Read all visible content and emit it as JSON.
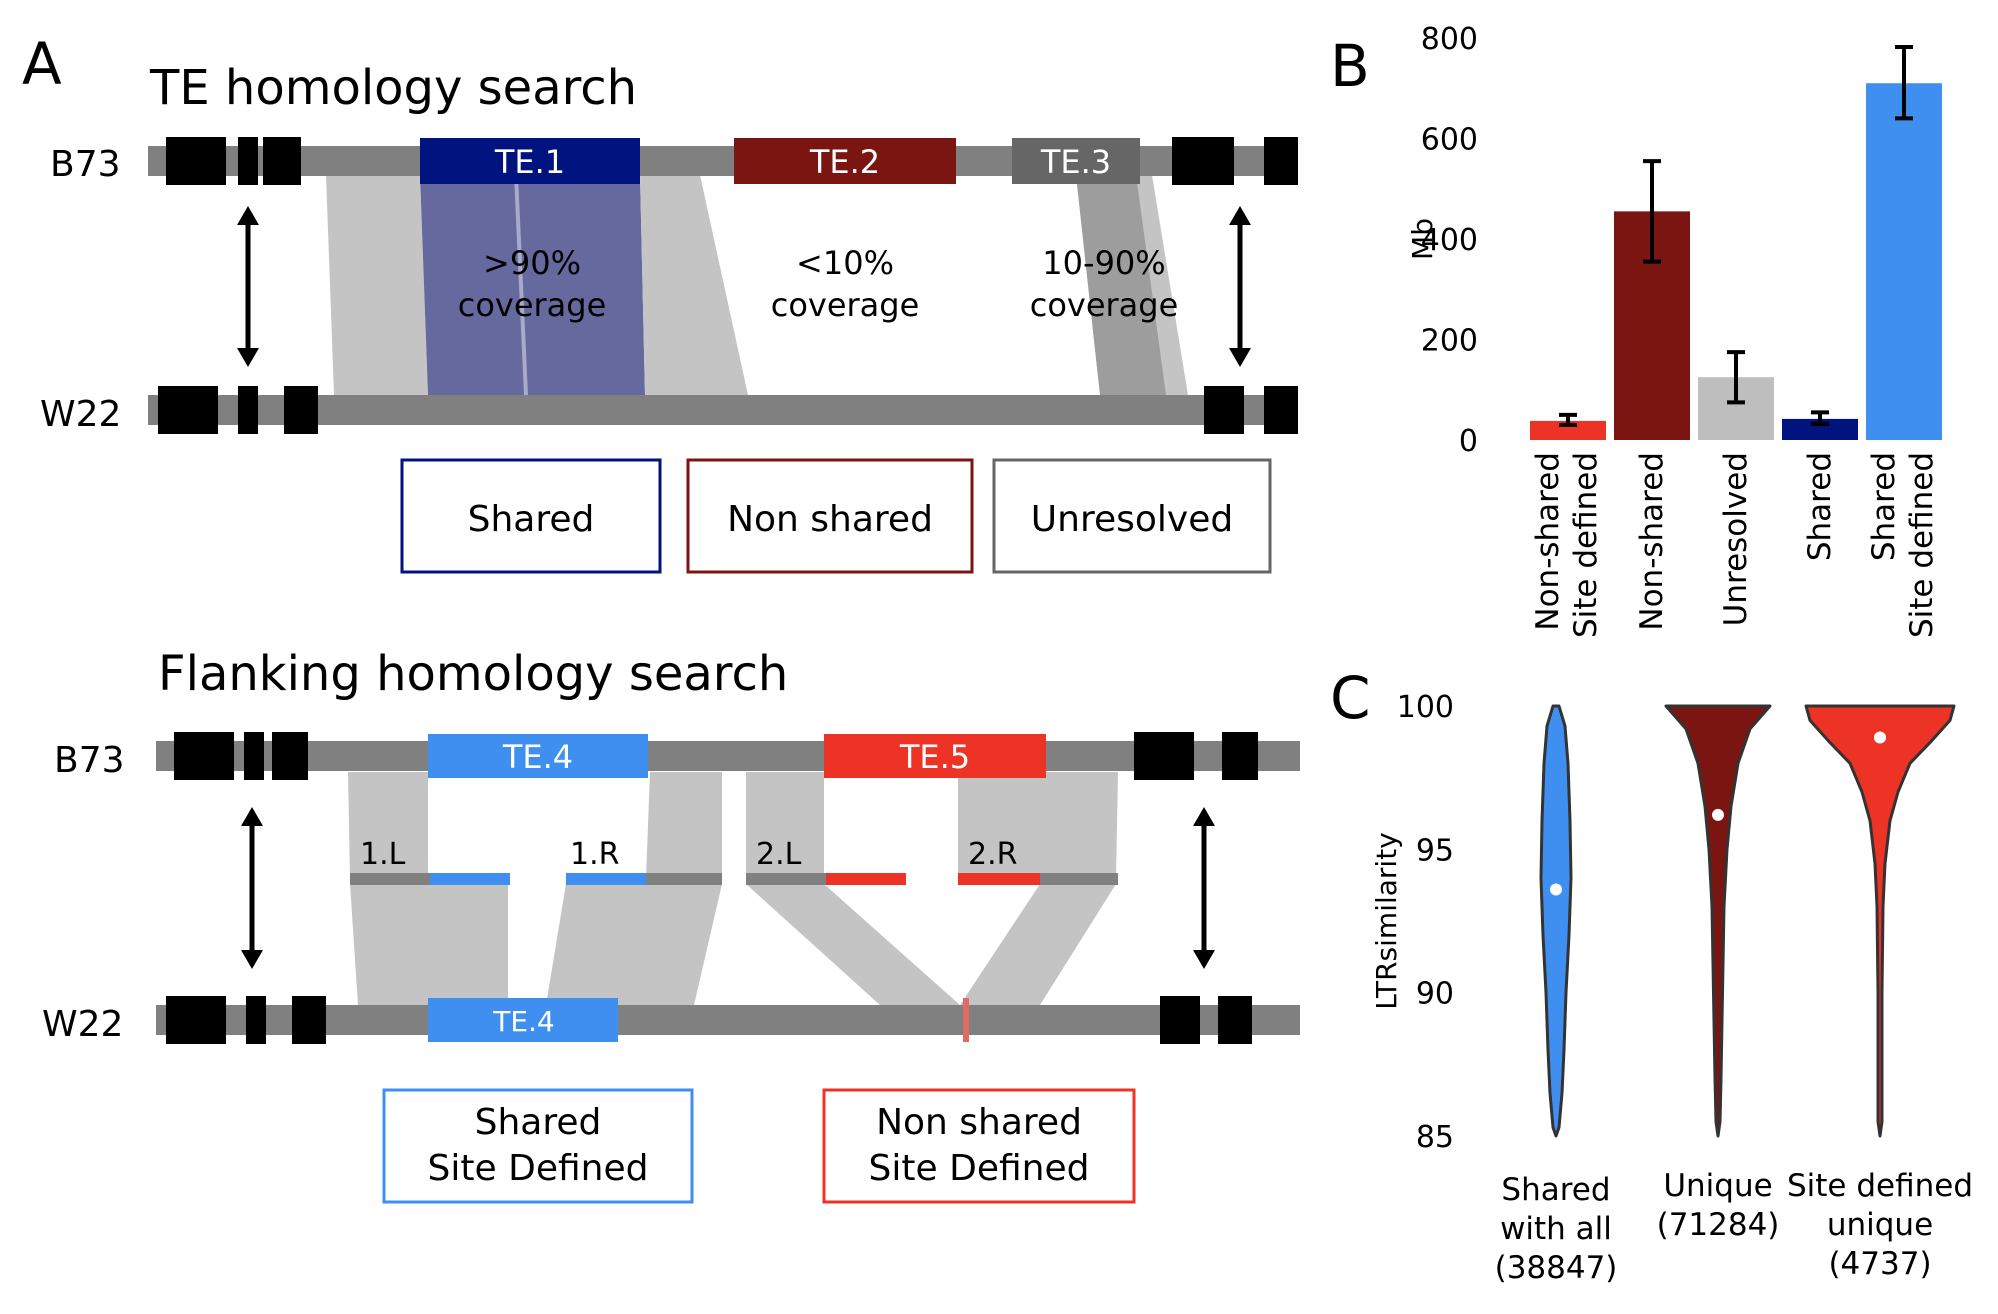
{
  "panels": {
    "a": {
      "letter": "A",
      "top_title": "TE homology search",
      "bottom_title": "Flanking homology search",
      "chrom_b73": "B73",
      "chrom_w22": "W22",
      "te_labels": [
        "TE.1",
        "TE.2",
        "TE.3",
        "TE.4",
        "TE.5",
        "TE.4"
      ],
      "coverage": [
        {
          "pct": ">90%",
          "word": "coverage"
        },
        {
          "pct": "<10%",
          "word": "coverage"
        },
        {
          "pct": "10-90%",
          "word": "coverage"
        }
      ],
      "flank_labels": [
        "1.L",
        "1.R",
        "2.L",
        "2.R"
      ],
      "boxes_top": [
        "Shared",
        "Non shared",
        "Unresolved"
      ],
      "boxes_bottom": [
        {
          "line1": "Shared",
          "line2": "Site Defined"
        },
        {
          "line1": "Non shared",
          "line2": "Site Defined"
        }
      ]
    },
    "b": {
      "letter": "B"
    },
    "c": {
      "letter": "C"
    }
  },
  "colors": {
    "shared": "#00137e",
    "non_shared": "#7a1511",
    "unresolved": "#666666",
    "shared_site": "#3f8ff0",
    "non_shared_site": "#ec3326",
    "unresolved_bar": "#bebebe",
    "chrom": "#808080",
    "homology": "#c4c4c4"
  },
  "chart_data": [
    {
      "type": "bar",
      "ylabel": "Mb",
      "ylim": [
        0,
        800
      ],
      "yticks": [
        0,
        200,
        400,
        600,
        800
      ],
      "categories": [
        {
          "line1": "Non-shared",
          "line2": "Site defined"
        },
        {
          "line1": "Non-shared",
          "line2": ""
        },
        {
          "line1": "Unresolved",
          "line2": ""
        },
        {
          "line1": "Shared",
          "line2": ""
        },
        {
          "line1": "Shared",
          "line2": "Site defined"
        }
      ],
      "values": [
        38,
        455,
        125,
        42,
        710
      ],
      "errors": [
        [
          30,
          50
        ],
        [
          355,
          555
        ],
        [
          75,
          175
        ],
        [
          32,
          55
        ],
        [
          640,
          782
        ]
      ],
      "colors": [
        "#ec3326",
        "#7a1511",
        "#bebebe",
        "#00137e",
        "#3f8ff0"
      ]
    },
    {
      "type": "violin",
      "ylabel": "LTRsimilarity",
      "ylim": [
        85,
        100
      ],
      "yticks": [
        85,
        90,
        95,
        100
      ],
      "groups": [
        {
          "line1": "Shared",
          "line2": "with all",
          "line3": "(38847)",
          "median": 93.6,
          "color": "#3f8ff0"
        },
        {
          "line1": "Unique",
          "line2": "(71284)",
          "line3": "",
          "median": 96.2,
          "color": "#7a1511"
        },
        {
          "line1": "Site defined",
          "line2": "unique",
          "line3": "(4737)",
          "median": 98.9,
          "color": "#ec3326"
        }
      ]
    }
  ]
}
